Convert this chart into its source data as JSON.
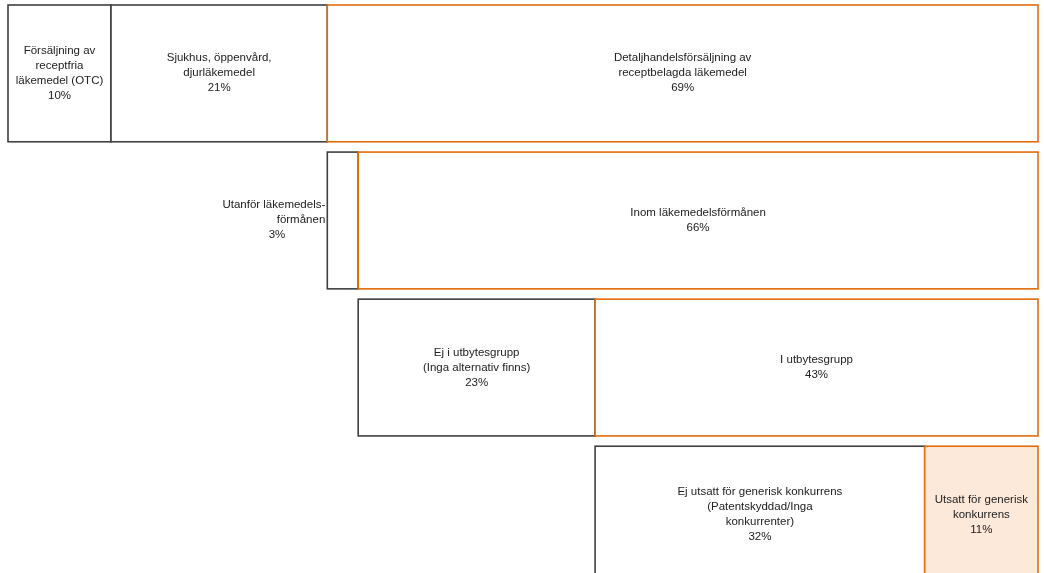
{
  "chart_data": {
    "type": "other",
    "data_labels": true,
    "categories": [
      "Försäljning av\nreceptfria\nläkemedel (OTC)",
      "Sjukhus, öppenvård,\ndjurläkemedel",
      "Detaljhandelsförsäljning av\nreceptbelagda läkemedel",
      "Utanför läkemedels-\nförmånen",
      "Inom läkemedelsförmånen",
      "Ej i utbytesgrupp\n(Inga alternativ finns)",
      "I utbytesgrupp",
      "Ej utsatt för generisk konkurrens\n(Patentskyddad/Inga\nkonkurrenter)",
      "Utsatt för generisk\nkonkurrens"
    ],
    "series": [
      {
        "color": "#e46c0a",
        "values": [
          10,
          21,
          69,
          3,
          66,
          23,
          43,
          32,
          11
        ],
        "colors": [
          "#ffffff",
          "#ffffff",
          "#ffffff",
          "#ffffff",
          "#ffffff",
          "#ffffff",
          "#ffffff",
          "#ffffff",
          "#fde9d9"
        ],
        "value_labels": [
          "10%",
          "21%",
          "69%",
          "3%",
          "66%",
          "23%",
          "43%",
          "32%",
          "11%"
        ]
      }
    ]
  }
}
